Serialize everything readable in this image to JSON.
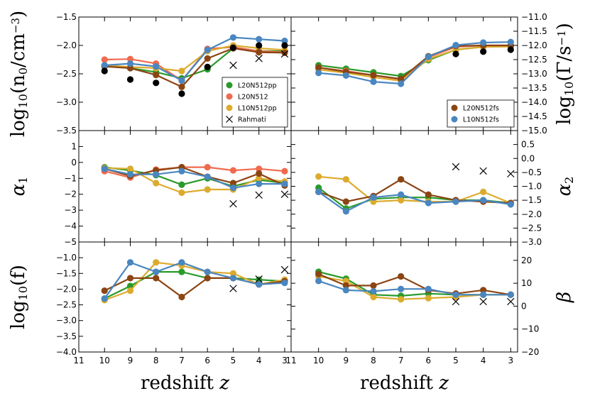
{
  "chart_data": {
    "type": "line",
    "x_tick_labels": [
      "11",
      "10",
      "9",
      "8",
      "7",
      "6",
      "5",
      "4",
      "3"
    ],
    "xlabel": "redshift z",
    "xlim": [
      11,
      2.75
    ],
    "colors": {
      "L20N512pp": "#2a9a2a",
      "L20N512": "#f06a4e",
      "L10N512pp": "#dcab2e",
      "L20N512fs": "#8b4513",
      "L10N512fs": "#4a86c0",
      "Rahmati": "#000000"
    },
    "panels": [
      {
        "id": "n0",
        "ylabel_main": "log",
        "ylabel_sub": "10",
        "ylabel_arg": "(n",
        "ylabel_sub2": "0",
        "ylabel_tail": "/cm",
        "ylabel_sup": "−3",
        "ylabel_close": ")",
        "ylim": [
          -3.5,
          -1.5
        ],
        "yticks": [
          -3.5,
          -3.0,
          -2.5,
          -2.0,
          -1.5
        ],
        "ytick_labels": [
          "−3.5",
          "−3.0",
          "−2.5",
          "−2.0",
          "−1.5"
        ],
        "series": [
          {
            "name": "L20N512pp",
            "x": [
              10,
              9,
              8,
              7,
              6,
              5,
              4,
              3
            ],
            "y": [
              -2.35,
              -2.4,
              -2.47,
              -2.58,
              -2.42,
              -2.05,
              -2.1,
              -2.1
            ]
          },
          {
            "name": "L20N512",
            "x": [
              10,
              9,
              8,
              7,
              6,
              5,
              4,
              3
            ],
            "y": [
              -2.25,
              -2.24,
              -2.32,
              -2.62,
              -2.06,
              -2.03,
              -2.1,
              -2.12
            ]
          },
          {
            "name": "L10N512pp",
            "x": [
              10,
              9,
              8,
              7,
              6,
              5,
              4,
              3
            ],
            "y": [
              -2.35,
              -2.38,
              -2.4,
              -2.45,
              -2.1,
              -2.0,
              -2.05,
              -2.08
            ]
          },
          {
            "name": "L20N512fs",
            "x": [
              10,
              9,
              8,
              7,
              6,
              5,
              4,
              3
            ],
            "y": [
              -2.37,
              -2.4,
              -2.52,
              -2.73,
              -2.23,
              -2.05,
              -2.12,
              -2.13
            ]
          },
          {
            "name": "L10N512fs",
            "x": [
              10,
              9,
              8,
              7,
              6,
              5,
              4,
              3
            ],
            "y": [
              -2.35,
              -2.32,
              -2.37,
              -2.62,
              -2.08,
              -1.86,
              -1.89,
              -1.92
            ]
          }
        ],
        "reference": [
          {
            "marker": "dot",
            "x": [
              10,
              9,
              8,
              7,
              6,
              5,
              4,
              3
            ],
            "y": [
              -2.45,
              -2.6,
              -2.66,
              -2.85,
              -2.38,
              -2.04,
              -2.0,
              -2.0
            ]
          },
          {
            "marker": "cross",
            "x": [
              5,
              4,
              3
            ],
            "y": [
              -2.35,
              -2.23,
              -2.15
            ]
          }
        ],
        "legend": {
          "position": "bottom-right",
          "entries": [
            "L20N512pp",
            "L20N512",
            "L10N512pp",
            "Rahmati"
          ]
        }
      },
      {
        "id": "gamma",
        "ylabel_main": "log",
        "ylabel_sub": "10",
        "ylabel_arg": "(Γ/s",
        "ylabel_sup": "−1",
        "ylabel_close": ")",
        "ylim": [
          -15.0,
          -11.0
        ],
        "yticks": [
          -15.0,
          -14.5,
          -14.0,
          -13.5,
          -13.0,
          -12.5,
          -12.0,
          -11.5,
          -11.0
        ],
        "ytick_labels": [
          "−15.0",
          "−14.5",
          "−14.0",
          "−13.5",
          "−13.0",
          "−12.5",
          "−12.0",
          "−11.5",
          "−11.0"
        ],
        "series": [
          {
            "name": "L20N512pp",
            "x": [
              10,
              9,
              8,
              7,
              6,
              5,
              4,
              3
            ],
            "y": [
              -12.7,
              -12.82,
              -12.95,
              -13.08,
              -12.52,
              -12.15,
              -12.05,
              -12.03
            ]
          },
          {
            "name": "L20N512",
            "x": [
              10,
              9,
              8,
              7,
              6,
              5,
              4,
              3
            ],
            "y": [
              -12.78,
              -12.9,
              -13.05,
              -13.2,
              -12.42,
              -12.05,
              -12.0,
              -12.0
            ]
          },
          {
            "name": "L10N512pp",
            "x": [
              10,
              9,
              8,
              7,
              6,
              5,
              4,
              3
            ],
            "y": [
              -12.85,
              -12.97,
              -13.12,
              -13.25,
              -12.48,
              -12.15,
              -12.05,
              -12.04
            ]
          },
          {
            "name": "L20N512fs",
            "x": [
              10,
              9,
              8,
              7,
              6,
              5,
              4,
              3
            ],
            "y": [
              -12.78,
              -12.93,
              -13.05,
              -13.18,
              -12.38,
              -12.02,
              -12.0,
              -12.0
            ]
          },
          {
            "name": "L10N512fs",
            "x": [
              10,
              9,
              8,
              7,
              6,
              5,
              4,
              3
            ],
            "y": [
              -12.97,
              -13.06,
              -13.28,
              -13.35,
              -12.4,
              -11.99,
              -11.9,
              -11.88
            ]
          }
        ],
        "reference": [
          {
            "marker": "dot",
            "x": [
              5,
              4,
              3
            ],
            "y": [
              -12.3,
              -12.22,
              -12.15
            ]
          }
        ],
        "legend": {
          "position": "bottom-right",
          "entries": [
            "L20N512fs",
            "L10N512fs"
          ]
        }
      },
      {
        "id": "alpha1",
        "ylabel_main": "α",
        "ylabel_sub": "1",
        "ylim": [
          -5,
          2
        ],
        "yticks": [
          -5,
          -4,
          -3,
          -2,
          -1,
          0,
          1
        ],
        "ytick_labels": [
          "−5",
          "−4",
          "−3",
          "−2",
          "−1",
          "0",
          "1"
        ],
        "series": [
          {
            "name": "L20N512pp",
            "x": [
              10,
              9,
              8,
              7,
              6,
              5,
              4,
              3
            ],
            "y": [
              -0.3,
              -0.5,
              -0.8,
              -1.4,
              -1.0,
              -1.5,
              -1.1,
              -1.3
            ]
          },
          {
            "name": "L20N512",
            "x": [
              10,
              9,
              8,
              7,
              6,
              5,
              4,
              3
            ],
            "y": [
              -0.55,
              -0.95,
              -0.45,
              -0.3,
              -0.3,
              -0.5,
              -0.4,
              -0.55
            ]
          },
          {
            "name": "L10N512pp",
            "x": [
              10,
              9,
              8,
              7,
              6,
              5,
              4,
              3
            ],
            "y": [
              -0.35,
              -0.4,
              -1.3,
              -1.9,
              -1.7,
              -1.7,
              -1.0,
              -1.2
            ]
          },
          {
            "name": "L20N512fs",
            "x": [
              10,
              9,
              8,
              7,
              6,
              5,
              4,
              3
            ],
            "y": [
              -0.4,
              -0.85,
              -0.5,
              -0.3,
              -0.9,
              -1.3,
              -0.7,
              -1.45
            ]
          },
          {
            "name": "L10N512fs",
            "x": [
              10,
              9,
              8,
              7,
              6,
              5,
              4,
              3
            ],
            "y": [
              -0.4,
              -0.75,
              -0.75,
              -0.55,
              -0.9,
              -1.6,
              -1.35,
              -1.35
            ]
          }
        ],
        "reference": [
          {
            "marker": "cross",
            "x": [
              5,
              4,
              3
            ],
            "y": [
              -2.6,
              -2.05,
              -2.0
            ]
          }
        ]
      },
      {
        "id": "alpha2",
        "ylabel_main": "α",
        "ylabel_sub": "2",
        "ylim": [
          -3.0,
          1.0
        ],
        "yticks": [
          -3.0,
          -2.5,
          -2.0,
          -1.5,
          -1.0,
          -0.5,
          0.0,
          0.5
        ],
        "ytick_labels": [
          "−3.0",
          "−2.5",
          "−2.0",
          "−1.5",
          "−1.0",
          "−0.5",
          "0.0",
          "0.5"
        ],
        "series": [
          {
            "name": "L20N512pp",
            "x": [
              10,
              9,
              8,
              7,
              6,
              5,
              4,
              3
            ],
            "y": [
              -1.05,
              -1.8,
              -1.45,
              -1.4,
              -1.4,
              -1.5,
              -1.5,
              -1.6
            ]
          },
          {
            "name": "L10N512pp",
            "x": [
              10,
              9,
              8,
              7,
              6,
              5,
              4,
              3
            ],
            "y": [
              -0.65,
              -0.75,
              -1.55,
              -1.5,
              -1.55,
              -1.55,
              -1.2,
              -1.6
            ]
          },
          {
            "name": "L20N512fs",
            "x": [
              10,
              9,
              8,
              7,
              6,
              5,
              4,
              3
            ],
            "y": [
              -1.2,
              -1.55,
              -1.35,
              -0.75,
              -1.3,
              -1.5,
              -1.55,
              -1.6
            ]
          },
          {
            "name": "L10N512fs",
            "x": [
              10,
              9,
              8,
              7,
              6,
              5,
              4,
              3
            ],
            "y": [
              -1.2,
              -1.9,
              -1.4,
              -1.3,
              -1.6,
              -1.55,
              -1.5,
              -1.65
            ]
          }
        ],
        "reference": [
          {
            "marker": "cross",
            "x": [
              5,
              4,
              3
            ],
            "y": [
              -0.3,
              -0.45,
              -0.55
            ]
          }
        ]
      },
      {
        "id": "f",
        "ylabel_main": "log",
        "ylabel_sub": "10",
        "ylabel_arg": "(f)",
        "ylim": [
          -4.0,
          -0.5
        ],
        "yticks": [
          -4.0,
          -3.5,
          -3.0,
          -2.5,
          -2.0,
          -1.5,
          -1.0
        ],
        "ytick_labels": [
          "−4.0",
          "−3.5",
          "−3.0",
          "−2.5",
          "−2.0",
          "−1.5",
          "−1.0"
        ],
        "series": [
          {
            "name": "L20N512pp",
            "x": [
              10,
              9,
              8,
              7,
              6,
              5,
              4,
              3
            ],
            "y": [
              -2.3,
              -1.9,
              -1.45,
              -1.45,
              -1.65,
              -1.65,
              -1.7,
              -1.75
            ]
          },
          {
            "name": "L10N512pp",
            "x": [
              10,
              9,
              8,
              7,
              6,
              5,
              4,
              3
            ],
            "y": [
              -2.35,
              -2.05,
              -1.15,
              -1.25,
              -1.45,
              -1.5,
              -1.85,
              -1.7
            ]
          },
          {
            "name": "L20N512fs",
            "x": [
              10,
              9,
              8,
              7,
              6,
              5,
              4,
              3
            ],
            "y": [
              -2.05,
              -1.65,
              -1.65,
              -2.25,
              -1.65,
              -1.65,
              -1.85,
              -1.75
            ]
          },
          {
            "name": "L10N512fs",
            "x": [
              10,
              9,
              8,
              7,
              6,
              5,
              4,
              3
            ],
            "y": [
              -2.3,
              -1.15,
              -1.45,
              -1.15,
              -1.45,
              -1.65,
              -1.85,
              -1.8
            ]
          }
        ],
        "reference": [
          {
            "marker": "cross",
            "x": [
              5,
              4,
              3
            ],
            "y": [
              -1.98,
              -1.68,
              -1.38
            ]
          }
        ]
      },
      {
        "id": "beta",
        "ylabel_main": "β",
        "ylim": [
          -20,
          28
        ],
        "yticks": [
          -20,
          -10,
          0,
          10,
          20
        ],
        "ytick_labels": [
          "−20",
          "−10",
          "0",
          "10",
          "20"
        ],
        "series": [
          {
            "name": "L20N512pp",
            "x": [
              10,
              9,
              8,
              7,
              6,
              5,
              4,
              3
            ],
            "y": [
              15.0,
              12.0,
              5.0,
              4.5,
              5.5,
              5.0,
              5.0,
              5.0
            ]
          },
          {
            "name": "L10N512pp",
            "x": [
              10,
              9,
              8,
              7,
              6,
              5,
              4,
              3
            ],
            "y": [
              13.0,
              11.0,
              4.0,
              3.0,
              3.5,
              4.0,
              5.0,
              5.0
            ]
          },
          {
            "name": "L20N512fs",
            "x": [
              10,
              9,
              8,
              7,
              6,
              5,
              4,
              3
            ],
            "y": [
              14.0,
              9.0,
              9.0,
              13.0,
              7.0,
              5.5,
              7.0,
              5.0
            ]
          },
          {
            "name": "L10N512fs",
            "x": [
              10,
              9,
              8,
              7,
              6,
              5,
              4,
              3
            ],
            "y": [
              11.0,
              7.0,
              6.5,
              7.5,
              7.5,
              5.0,
              5.0,
              5.0
            ]
          }
        ],
        "reference": [
          {
            "marker": "cross",
            "x": [
              5,
              4,
              3
            ],
            "y": [
              2.0,
              2.0,
              2.0
            ]
          }
        ]
      }
    ]
  }
}
